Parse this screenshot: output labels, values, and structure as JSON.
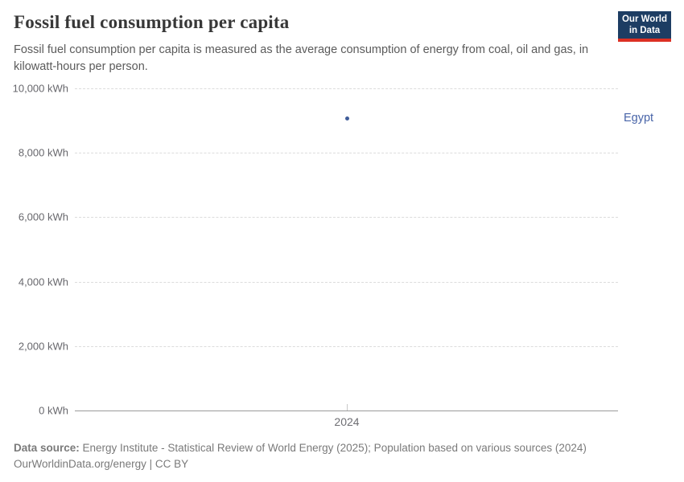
{
  "header": {
    "title": "Fossil fuel consumption per capita",
    "subtitle": "Fossil fuel consumption per capita is measured as the average consumption of energy from coal, oil and gas, in kilowatt-hours per person.",
    "logo": {
      "line1": "Our World",
      "line2": "in Data"
    }
  },
  "chart_data": {
    "type": "scatter",
    "title": "Fossil fuel consumption per capita",
    "x": [
      2024
    ],
    "series": [
      {
        "name": "Egypt",
        "values": [
          9080
        ]
      }
    ],
    "xlabel": "",
    "ylabel": "kWh",
    "ylim": [
      0,
      10000
    ],
    "ytick_values": [
      10000,
      8000,
      6000,
      4000,
      2000,
      0
    ],
    "ytick_labels": [
      "10,000 kWh",
      "8,000 kWh",
      "6,000 kWh",
      "4,000 kWh",
      "2,000 kWh",
      "0 kWh"
    ],
    "xtick_labels": [
      "2024"
    ],
    "grid": "horizontal dashed, on",
    "legend_position": "right of plot, inline entity label",
    "entity_label": "Egypt"
  },
  "footer": {
    "data_source_label": "Data source:",
    "data_source_text": " Energy Institute - Statistical Review of World Energy (2025); Population based on various sources (2024)",
    "link_line": "OurWorldinData.org/energy | CC BY"
  },
  "colors": {
    "accent_series": "#4864a8",
    "logo_background": "#1d3d63",
    "logo_red_bar": "#dc3023",
    "gridline": "#dcdcdc",
    "axis_text": "#67676c"
  }
}
